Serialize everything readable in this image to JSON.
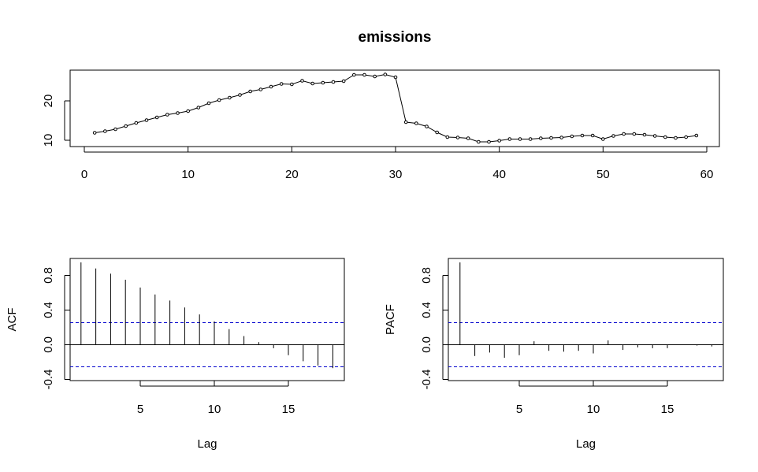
{
  "title": "emissions",
  "chart_data": [
    {
      "type": "line",
      "title": "emissions",
      "xlabel": "",
      "ylabel": "",
      "xlim": [
        0,
        60
      ],
      "ylim": [
        9,
        27
      ],
      "x_ticks": [
        "0",
        "10",
        "20",
        "30",
        "40",
        "50",
        "60"
      ],
      "y_ticks": [
        "10",
        "20"
      ],
      "markers": true,
      "x": [
        1,
        2,
        3,
        4,
        5,
        6,
        7,
        8,
        9,
        10,
        11,
        12,
        13,
        14,
        15,
        16,
        17,
        18,
        19,
        20,
        21,
        22,
        23,
        24,
        25,
        26,
        27,
        28,
        29,
        30,
        31,
        32,
        33,
        34,
        35,
        36,
        37,
        38,
        39,
        40,
        41,
        42,
        43,
        44,
        45,
        46,
        47,
        48,
        49,
        50,
        51,
        52,
        53,
        54,
        55,
        56,
        57,
        58,
        59
      ],
      "values": [
        11.9,
        12.3,
        12.8,
        13.6,
        14.4,
        15.1,
        15.8,
        16.5,
        16.9,
        17.4,
        18.3,
        19.4,
        20.2,
        20.8,
        21.5,
        22.4,
        22.9,
        23.6,
        24.3,
        24.2,
        25.1,
        24.4,
        24.6,
        24.8,
        25.0,
        26.6,
        26.6,
        26.2,
        26.7,
        26.0,
        14.6,
        14.3,
        13.5,
        12.0,
        10.8,
        10.7,
        10.5,
        9.6,
        9.6,
        9.9,
        10.3,
        10.3,
        10.3,
        10.5,
        10.6,
        10.7,
        11.0,
        11.2,
        11.2,
        10.3,
        11.1,
        11.6,
        11.6,
        11.4,
        11.1,
        10.8,
        10.6,
        10.8,
        11.2
      ]
    },
    {
      "type": "bar",
      "xlabel": "Lag",
      "ylabel": "ACF",
      "xlim": [
        0.6,
        18.5
      ],
      "ylim": [
        -0.5,
        1.05
      ],
      "x_ticks": [
        "5",
        "10",
        "15"
      ],
      "y_ticks": [
        "-0.4",
        "0.0",
        "0.4",
        "0.8"
      ],
      "lags": [
        1,
        2,
        3,
        4,
        5,
        6,
        7,
        8,
        9,
        10,
        11,
        12,
        13,
        14,
        15,
        16,
        17,
        18
      ],
      "values": [
        0.95,
        0.88,
        0.82,
        0.75,
        0.66,
        0.58,
        0.51,
        0.43,
        0.35,
        0.27,
        0.18,
        0.1,
        0.03,
        -0.04,
        -0.12,
        -0.19,
        -0.24,
        -0.27
      ],
      "confidence_limit": 0.255,
      "ci_color": "#0000cd"
    },
    {
      "type": "bar",
      "xlabel": "Lag",
      "ylabel": "PACF",
      "xlim": [
        0.6,
        18.5
      ],
      "ylim": [
        -0.5,
        1.05
      ],
      "x_ticks": [
        "5",
        "10",
        "15"
      ],
      "y_ticks": [
        "-0.4",
        "0.0",
        "0.4",
        "0.8"
      ],
      "lags": [
        1,
        2,
        3,
        4,
        5,
        6,
        7,
        8,
        9,
        10,
        11,
        12,
        13,
        14,
        15,
        16,
        17,
        18
      ],
      "values": [
        0.95,
        -0.13,
        -0.09,
        -0.15,
        -0.12,
        0.04,
        -0.07,
        -0.08,
        -0.07,
        -0.1,
        0.05,
        -0.06,
        -0.03,
        -0.04,
        -0.04,
        0.0,
        -0.01,
        -0.02
      ],
      "confidence_limit": 0.255,
      "ci_color": "#0000cd"
    }
  ]
}
